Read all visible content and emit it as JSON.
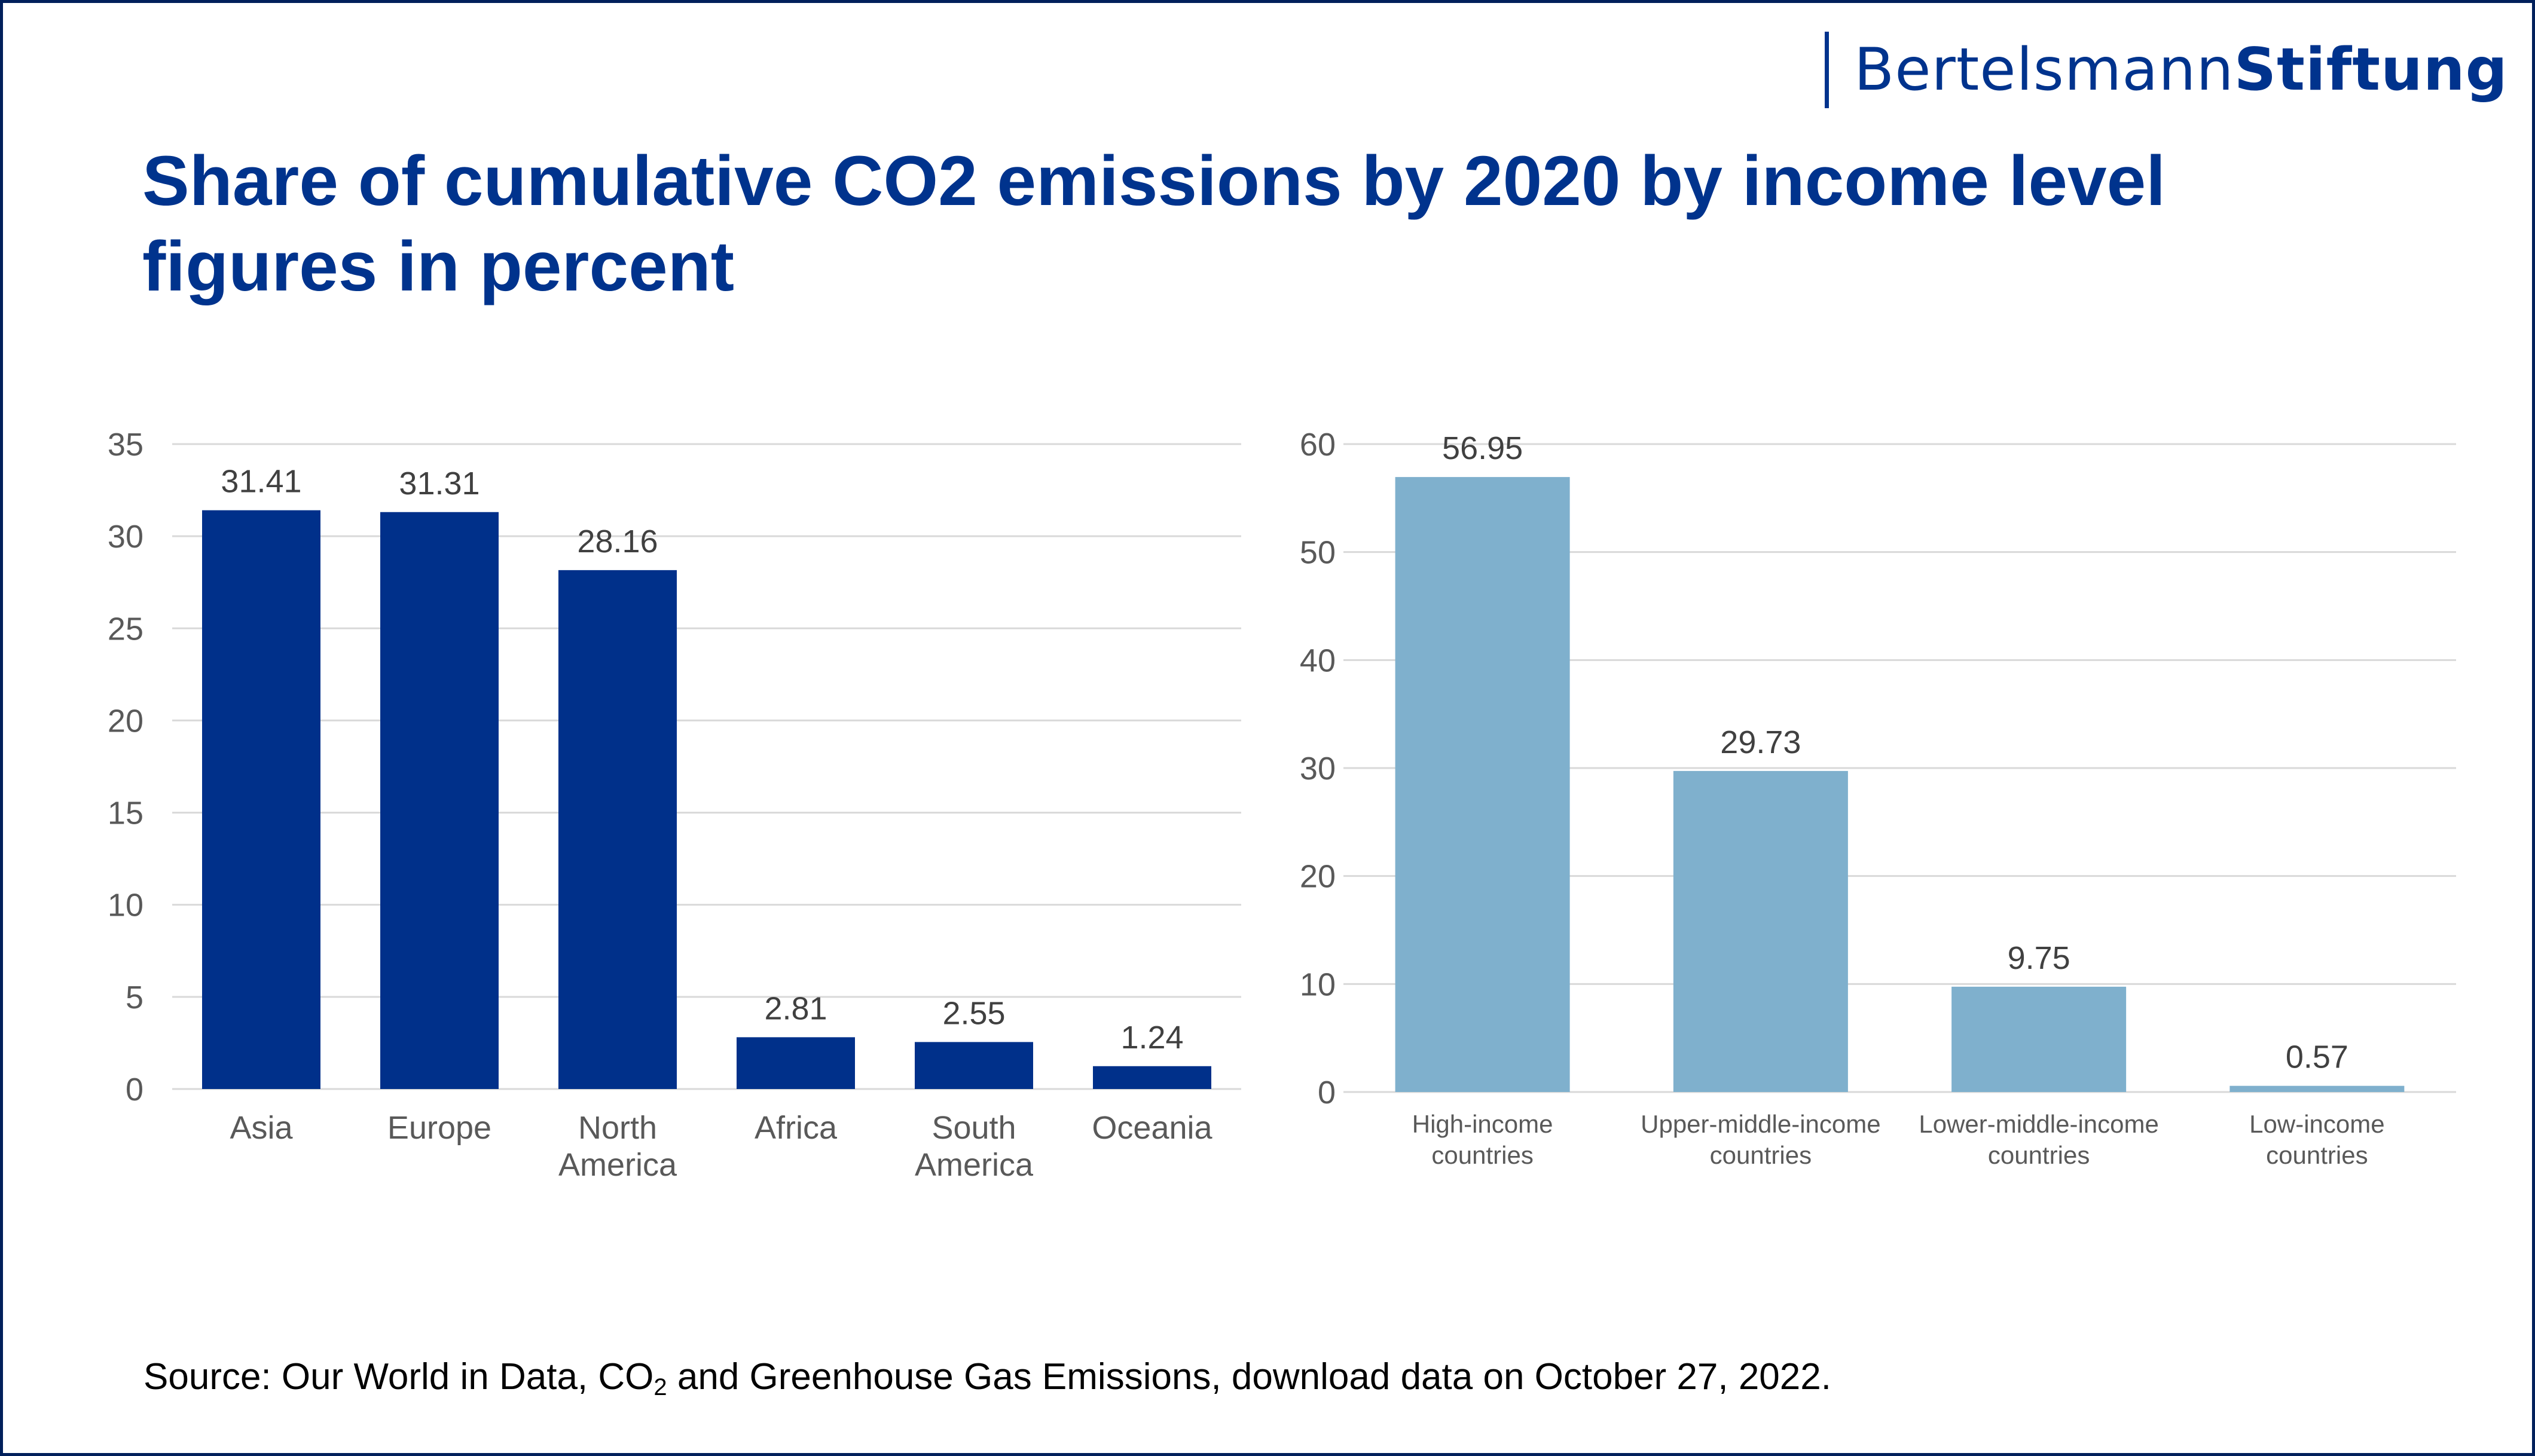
{
  "logo": {
    "regular": "Bertelsmann",
    "bold": "Stiftung",
    "color": "#00338d"
  },
  "title": {
    "line1": "Share of cumulative CO2 emissions by 2020 by income level",
    "line2": "figures in percent",
    "color": "#00338d"
  },
  "source": {
    "prefix": "Source: Our World in Data, CO",
    "subscript": "2",
    "suffix": " and Greenhouse Gas Emissions, download data on October 27, 2022."
  },
  "chart_data": [
    {
      "type": "bar",
      "title": "",
      "xlabel": "",
      "ylabel": "",
      "ylim": [
        0,
        35
      ],
      "yticks": [
        0,
        5,
        10,
        15,
        20,
        25,
        30,
        35
      ],
      "grid": true,
      "legend": "none",
      "color": "#00308a",
      "categories": [
        [
          "Asia"
        ],
        [
          "Europe"
        ],
        [
          "North",
          "America"
        ],
        [
          "Africa"
        ],
        [
          "South",
          "America"
        ],
        [
          "Oceania"
        ]
      ],
      "values": [
        31.41,
        31.31,
        28.16,
        2.81,
        2.55,
        1.24
      ],
      "data_labels": [
        "31.41",
        "31.31",
        "28.16",
        "2.81",
        "2.55",
        "1.24"
      ]
    },
    {
      "type": "bar",
      "title": "",
      "xlabel": "",
      "ylabel": "",
      "ylim": [
        0,
        60
      ],
      "yticks": [
        0,
        10,
        20,
        30,
        40,
        50,
        60
      ],
      "grid": true,
      "legend": "none",
      "color": "#7fb0cd",
      "categories": [
        [
          "High-income",
          "countries"
        ],
        [
          "Upper-middle-income",
          "countries"
        ],
        [
          "Lower-middle-income",
          "countries"
        ],
        [
          "Low-income",
          "countries"
        ]
      ],
      "values": [
        56.95,
        29.73,
        9.75,
        0.57
      ],
      "data_labels": [
        "56.95",
        "29.73",
        "9.75",
        "0.57"
      ]
    }
  ]
}
